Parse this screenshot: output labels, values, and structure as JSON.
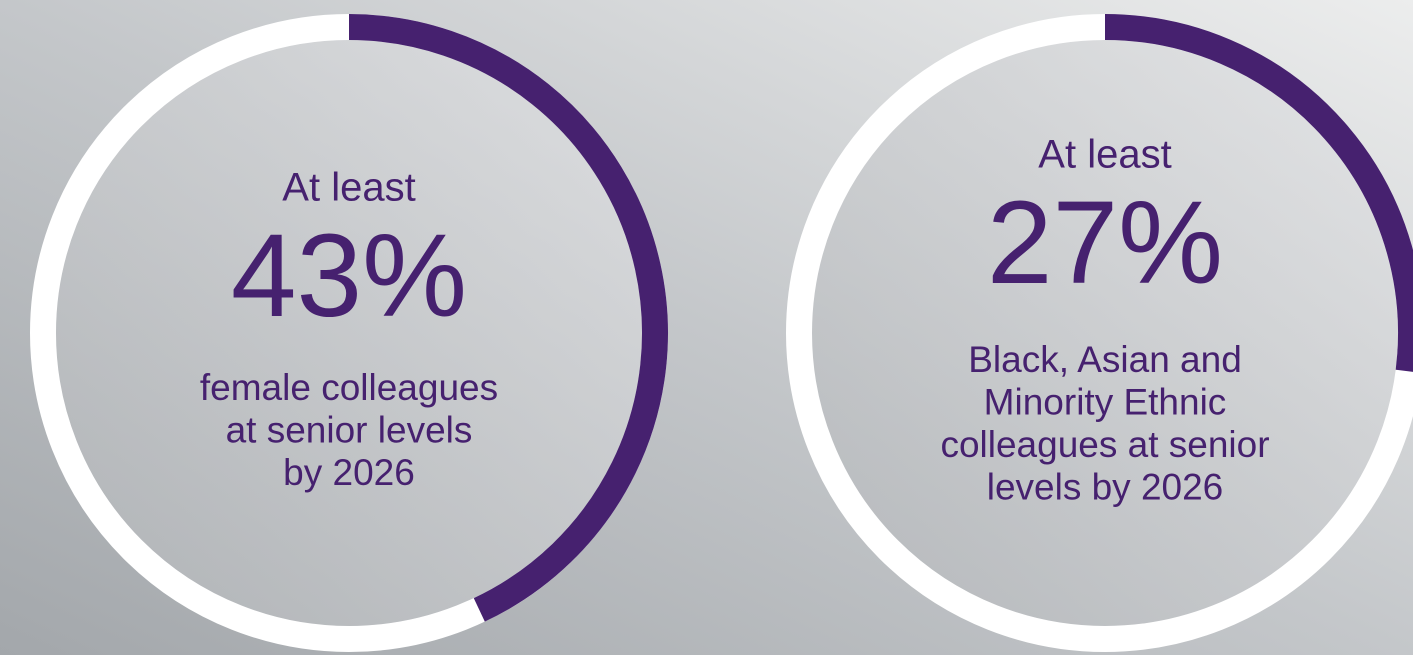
{
  "chart_data": [
    {
      "type": "ring",
      "subtitle": "At least",
      "values": [
        43
      ],
      "value_labels": [
        "43%"
      ],
      "caption": [
        "female colleagues",
        "at senior levels",
        "by 2026"
      ],
      "color": "#46216f",
      "track_color": "#ffffff"
    },
    {
      "type": "ring",
      "subtitle": "At least",
      "values": [
        27
      ],
      "value_labels": [
        "27%"
      ],
      "caption": [
        "Black, Asian and",
        "Minority Ethnic",
        "colleagues at senior",
        "levels by 2026"
      ],
      "color": "#46216f",
      "track_color": "#ffffff"
    }
  ]
}
